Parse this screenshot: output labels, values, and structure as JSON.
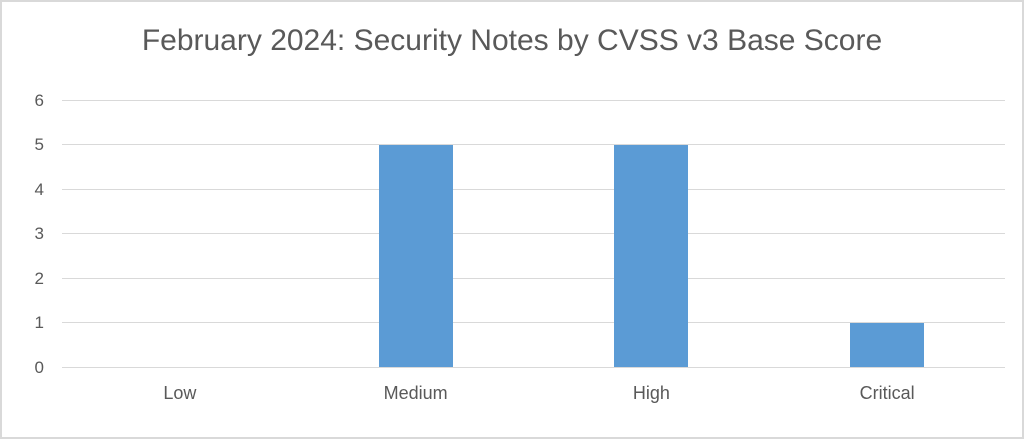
{
  "chart_data": {
    "type": "bar",
    "title": "February 2024: Security Notes by CVSS v3 Base Score",
    "categories": [
      "Low",
      "Medium",
      "High",
      "Critical"
    ],
    "values": [
      0,
      5,
      5,
      1
    ],
    "xlabel": "",
    "ylabel": "",
    "ylim": [
      0,
      6
    ],
    "yticks": [
      0,
      1,
      2,
      3,
      4,
      5,
      6
    ],
    "grid": true,
    "legend": "none",
    "colors": {
      "bar": "#5B9BD5",
      "gridline": "#D9D9D9",
      "axis_text": "#595959",
      "title_text": "#595959",
      "frame_border": "#D9D9D9",
      "background": "#FFFFFF"
    }
  }
}
